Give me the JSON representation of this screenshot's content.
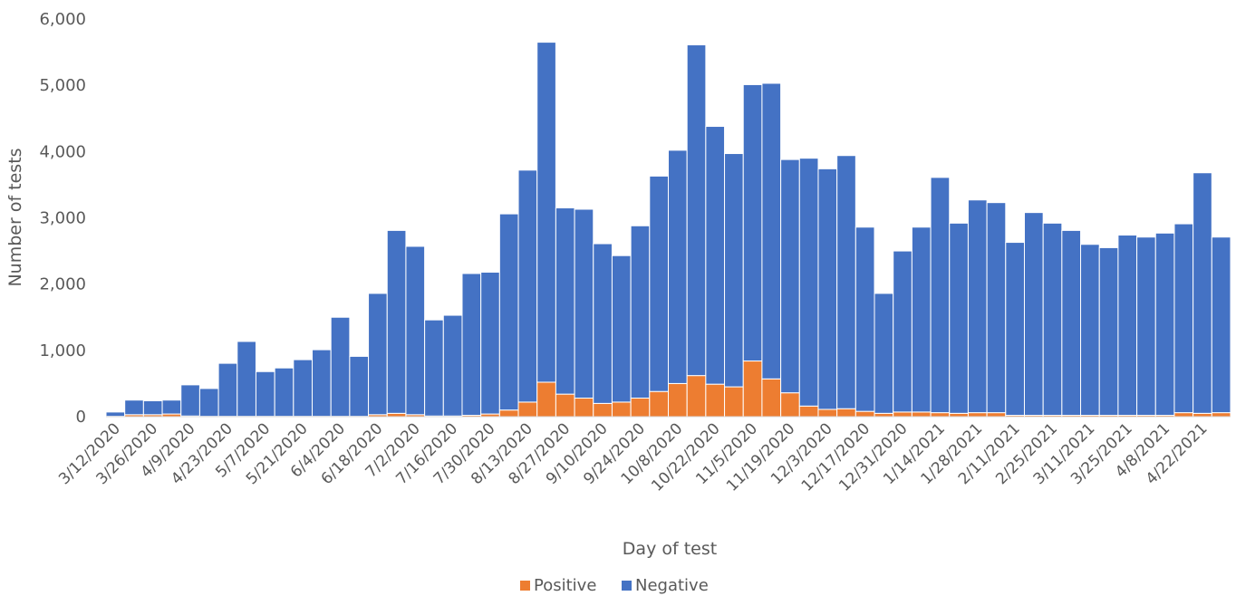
{
  "chart_data": {
    "type": "bar",
    "stacked": true,
    "xlabel": "Day of test",
    "ylabel": "Number of tests",
    "ylim": [
      0,
      6000
    ],
    "y_ticks": [
      0,
      1000,
      2000,
      3000,
      4000,
      5000,
      6000
    ],
    "y_tick_labels": [
      "0",
      "1,000",
      "2,000",
      "3,000",
      "4,000",
      "5,000",
      "6,000"
    ],
    "x_tick_labels": [
      "3/12/2020",
      "3/26/2020",
      "4/9/2020",
      "4/23/2020",
      "5/7/2020",
      "5/21/2020",
      "6/4/2020",
      "6/18/2020",
      "7/2/2020",
      "7/16/2020",
      "7/30/2020",
      "8/13/2020",
      "8/27/2020",
      "9/10/2020",
      "9/24/2020",
      "10/8/2020",
      "10/22/2020",
      "11/5/2020",
      "11/19/2020",
      "12/3/2020",
      "12/17/2020",
      "12/31/2020",
      "1/14/2021",
      "1/28/2021",
      "2/11/2021",
      "2/25/2021",
      "3/11/2021",
      "3/25/2021",
      "4/8/2021",
      "4/22/2021"
    ],
    "legend_position": "bottom",
    "grid": false,
    "series": [
      {
        "name": "Positive",
        "color": "#ED7D31",
        "values": [
          5,
          30,
          30,
          40,
          10,
          5,
          5,
          5,
          5,
          5,
          5,
          5,
          5,
          5,
          30,
          50,
          30,
          10,
          10,
          20,
          40,
          100,
          220,
          520,
          340,
          280,
          200,
          220,
          280,
          380,
          500,
          620,
          490,
          450,
          840,
          570,
          360,
          160,
          110,
          120,
          80,
          50,
          70,
          70,
          60,
          50,
          60,
          60,
          20,
          20,
          20,
          20,
          20,
          20,
          20,
          20,
          20,
          60,
          50,
          60
        ]
      },
      {
        "name": "Negative",
        "color": "#4472C4",
        "values": [
          65,
          220,
          210,
          210,
          470,
          420,
          800,
          1130,
          675,
          730,
          855,
          1005,
          1495,
          905,
          1830,
          2760,
          2540,
          1450,
          1520,
          2140,
          2140,
          2960,
          3500,
          5130,
          2810,
          2850,
          2410,
          2210,
          2600,
          3250,
          3520,
          4990,
          3890,
          3520,
          4170,
          4460,
          3520,
          3740,
          3630,
          3820,
          2780,
          1810,
          2430,
          2790,
          3550,
          2870,
          3210,
          3170,
          2610,
          3060,
          2900,
          2790,
          2580,
          2530,
          2720,
          2690,
          2750,
          2850,
          3630,
          2650
        ]
      }
    ]
  }
}
